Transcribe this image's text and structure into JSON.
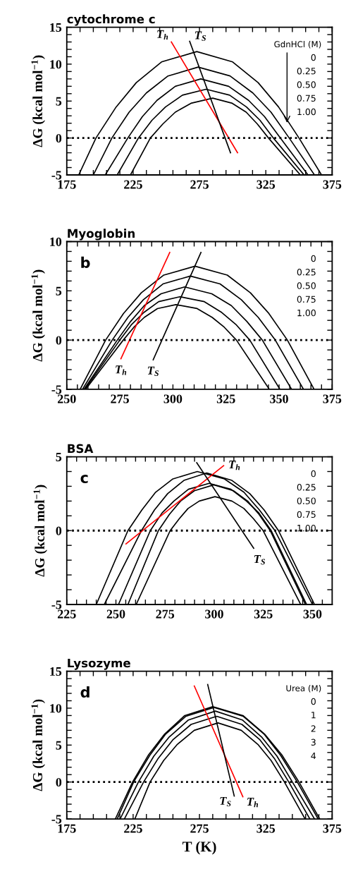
{
  "chart_data": [
    {
      "type": "line",
      "title": "cytochrome c",
      "legend_title": "GdnHCl (M)",
      "ylabel": "ΔG (kcal mol$^{−1}$)",
      "xlim": [
        175,
        375
      ],
      "ylim": [
        -5,
        15
      ],
      "xticks": [
        175,
        {
          "value": 185,
          "label": null
        },
        {
          "value": 195,
          "label": null
        },
        {
          "value": 205,
          "label": null
        },
        {
          "value": 215,
          "label": null
        },
        225,
        {
          "value": 235,
          "label": null
        },
        {
          "value": 245,
          "label": null
        },
        {
          "value": 255,
          "label": null
        },
        {
          "value": 265,
          "label": null
        },
        275,
        {
          "value": 285,
          "label": null
        },
        {
          "value": 295,
          "label": null
        },
        {
          "value": 305,
          "label": null
        },
        {
          "value": 315,
          "label": null
        },
        325,
        {
          "value": 335,
          "label": null
        },
        {
          "value": 345,
          "label": null
        },
        {
          "value": 355,
          "label": null
        },
        {
          "value": 365,
          "label": null
        },
        375
      ],
      "yticks": [
        -5,
        {
          "value": -4,
          "label": null
        },
        {
          "value": -3,
          "label": null
        },
        {
          "value": -2,
          "label": null
        },
        {
          "value": -1,
          "label": null
        },
        0,
        {
          "value": 1,
          "label": null
        },
        {
          "value": 2,
          "label": null
        },
        {
          "value": 3,
          "label": null
        },
        {
          "value": 4,
          "label": null
        },
        5,
        {
          "value": 6,
          "label": null
        },
        {
          "value": 7,
          "label": null
        },
        {
          "value": 8,
          "label": null
        },
        {
          "value": 9,
          "label": null
        },
        10,
        {
          "value": 11,
          "label": null
        },
        {
          "value": 12,
          "label": null
        },
        {
          "value": 13,
          "label": null
        },
        {
          "value": 14,
          "label": null
        },
        15
      ],
      "series": [
        {
          "color": "#000000",
          "x": [
            184,
            197,
            212.2,
            227.4,
            246.4,
            273,
            300,
            319.2,
            334.6,
            350,
            367
          ],
          "values": [
            -5,
            0,
            4.2,
            7.5,
            10.3,
            11.7,
            10.3,
            7.5,
            4.2,
            0,
            -5
          ]
        },
        {
          "color": "#000000",
          "x": [
            195,
            209,
            222,
            235,
            251.3,
            274,
            298,
            315.2,
            328.9,
            342.6,
            361.7
          ],
          "values": [
            -5,
            0,
            3.5,
            6.1,
            8.4,
            9.6,
            8.4,
            6.1,
            3.5,
            0,
            -5
          ]
        },
        {
          "color": "#000000",
          "x": [
            204,
            221,
            232,
            243,
            256.8,
            276,
            297,
            312,
            324,
            336,
            356.8
          ],
          "values": [
            -5,
            0,
            2.9,
            5.1,
            7,
            8,
            7,
            5.1,
            2.9,
            0,
            -5
          ]
        },
        {
          "color": "#000000",
          "x": [
            213,
            229,
            239.2,
            249.4,
            262.2,
            280,
            297.7,
            310.4,
            320.6,
            330.7,
            353.8
          ],
          "values": [
            -5,
            0,
            2.4,
            4.2,
            5.8,
            6.6,
            5.8,
            4.2,
            2.4,
            0,
            -5
          ]
        },
        {
          "color": "#000000",
          "x": [
            223,
            238,
            247.4,
            256.8,
            268.6,
            285,
            299.7,
            310.2,
            318.6,
            327,
            351
          ],
          "values": [
            -5,
            0,
            1.9,
            3.5,
            4.7,
            5.4,
            4.7,
            3.5,
            1.9,
            0,
            -5
          ]
        },
        {
          "color": "#ff0000",
          "x": [
            253.8,
            303.7
          ],
          "values": [
            13,
            -2
          ]
        },
        {
          "color": "#000000",
          "x": [
            267.6,
            298.4
          ],
          "values": [
            13.1,
            -2
          ]
        }
      ],
      "ref_lines": [
        {
          "axis": "y",
          "value": 0,
          "color": "#000000",
          "line_style": "dotted"
        }
      ],
      "annotations": [
        {
          "text": "T$_{h}$",
          "x": 253.8,
          "y": 13
        },
        {
          "text": "T$_{S}$",
          "x": 267.6,
          "y": 13.1
        },
        "0",
        "0.25",
        "0.50",
        "0.75",
        "1.00"
      ]
    },
    {
      "type": "line",
      "title": "Myoglobin",
      "subtitle": "b",
      "ylabel": "ΔG (kcal mol$^{−1}$)",
      "xlim": [
        250,
        375
      ],
      "ylim": [
        -5,
        10
      ],
      "xticks": [
        250,
        {
          "value": 255,
          "label": null
        },
        {
          "value": 260,
          "label": null
        },
        {
          "value": 265,
          "label": null
        },
        {
          "value": 270,
          "label": null
        },
        275,
        {
          "value": 280,
          "label": null
        },
        {
          "value": 285,
          "label": null
        },
        {
          "value": 290,
          "label": null
        },
        {
          "value": 295,
          "label": null
        },
        300,
        {
          "value": 305,
          "label": null
        },
        {
          "value": 310,
          "label": null
        },
        {
          "value": 315,
          "label": null
        },
        {
          "value": 320,
          "label": null
        },
        325,
        {
          "value": 330,
          "label": null
        },
        {
          "value": 335,
          "label": null
        },
        {
          "value": 340,
          "label": null
        },
        {
          "value": 345,
          "label": null
        },
        350,
        {
          "value": 355,
          "label": null
        },
        {
          "value": 360,
          "label": null
        },
        {
          "value": 365,
          "label": null
        },
        {
          "value": 370,
          "label": null
        },
        375
      ],
      "yticks": [
        -5,
        {
          "value": -4,
          "label": null
        },
        {
          "value": -3,
          "label": null
        },
        {
          "value": -2,
          "label": null
        },
        {
          "value": -1,
          "label": null
        },
        0,
        {
          "value": 1,
          "label": null
        },
        {
          "value": 2,
          "label": null
        },
        {
          "value": 3,
          "label": null
        },
        {
          "value": 4,
          "label": null
        },
        5,
        {
          "value": 6,
          "label": null
        },
        {
          "value": 7,
          "label": null
        },
        {
          "value": 8,
          "label": null
        },
        {
          "value": 9,
          "label": null
        },
        10
      ],
      "series": [
        {
          "color": "#000000",
          "x": [
            256.3,
            268.3,
            276.7,
            285.1,
            295.7,
            310.4,
            325.6,
            336.5,
            345.2,
            353.9,
            366.5
          ],
          "values": [
            -5,
            0,
            2.7,
            4.8,
            6.6,
            7.5,
            6.6,
            4.8,
            2.7,
            0,
            -5
          ]
        },
        {
          "color": "#000000",
          "x": [
            257.4,
            271.4,
            278.8,
            286.1,
            295.3,
            308.2,
            322.2,
            332.2,
            340.2,
            348.2,
            361.5
          ],
          "values": [
            -5,
            0,
            2.3,
            4.1,
            5.7,
            6.5,
            5.7,
            4.1,
            2.3,
            0,
            -5
          ]
        },
        {
          "color": "#000000",
          "x": [
            258.1,
            273.8,
            280.1,
            286.5,
            294.4,
            305.5,
            318.3,
            327.5,
            334.8,
            342.1,
            355.9
          ],
          "values": [
            -5,
            0,
            1.9,
            3.5,
            4.7,
            5.4,
            4.7,
            3.5,
            1.9,
            0,
            -5
          ]
        },
        {
          "color": "#000000",
          "x": [
            258.5,
            275,
            280.6,
            286.3,
            293.3,
            303.2,
            314.8,
            323,
            329.6,
            336.2,
            350.4
          ],
          "values": [
            -5,
            0,
            1.6,
            2.8,
            3.9,
            4.4,
            3.9,
            2.8,
            1.6,
            0,
            -5
          ]
        },
        {
          "color": "#000000",
          "x": [
            258.9,
            276.6,
            281.6,
            286.5,
            292.7,
            301.4,
            311.4,
            318.5,
            324.2,
            329.9,
            345.4
          ],
          "values": [
            -5,
            0,
            1.3,
            2.3,
            3.2,
            3.6,
            3.2,
            2.3,
            1.3,
            0,
            -5
          ]
        },
        {
          "color": "#ff0000",
          "x": [
            275.5,
            298.5
          ],
          "values": [
            -1.9,
            8.9
          ]
        },
        {
          "color": "#000000",
          "x": [
            290.7,
            313.2
          ],
          "values": [
            -2,
            8.9
          ]
        }
      ],
      "ref_lines": [
        {
          "axis": "y",
          "value": 0,
          "color": "#000000",
          "line_style": "dotted"
        }
      ],
      "annotations": [
        {
          "text": "T$_{h}$",
          "x": 275.5,
          "y": -1.9
        },
        {
          "text": "T$_{S}$",
          "x": 290.7,
          "y": -2
        },
        "0",
        "0.25",
        "0.50",
        "0.75",
        "1.00"
      ]
    },
    {
      "type": "line",
      "title": "BSA",
      "subtitle": "c",
      "ylabel": "ΔG (kcal mol$^{−1}$)",
      "xlim": [
        225,
        360
      ],
      "ylim": [
        -5,
        5
      ],
      "xticks": [
        225,
        {
          "value": 230,
          "label": null
        },
        {
          "value": 235,
          "label": null
        },
        {
          "value": 240,
          "label": null
        },
        {
          "value": 245,
          "label": null
        },
        250,
        {
          "value": 255,
          "label": null
        },
        {
          "value": 260,
          "label": null
        },
        {
          "value": 265,
          "label": null
        },
        {
          "value": 270,
          "label": null
        },
        275,
        {
          "value": 280,
          "label": null
        },
        {
          "value": 285,
          "label": null
        },
        {
          "value": 290,
          "label": null
        },
        {
          "value": 295,
          "label": null
        },
        300,
        {
          "value": 305,
          "label": null
        },
        {
          "value": 310,
          "label": null
        },
        {
          "value": 315,
          "label": null
        },
        {
          "value": 320,
          "label": null
        },
        325,
        {
          "value": 330,
          "label": null
        },
        {
          "value": 335,
          "label": null
        },
        {
          "value": 340,
          "label": null
        },
        {
          "value": 345,
          "label": null
        },
        350,
        {
          "value": 355,
          "label": null
        }
      ],
      "yticks": [
        -5,
        {
          "value": -4,
          "label": null
        },
        {
          "value": -3,
          "label": null
        },
        {
          "value": -2,
          "label": null
        },
        {
          "value": -1,
          "label": null
        },
        0,
        {
          "value": 1,
          "label": null
        },
        {
          "value": 2,
          "label": null
        },
        {
          "value": 3,
          "label": null
        },
        {
          "value": 4,
          "label": null
        },
        5
      ],
      "series": [
        {
          "color": "#000000",
          "x": [
            240,
            256.1,
            263.2,
            270.2,
            279,
            291.4,
            305.2,
            315.1,
            323,
            330.9,
            350
          ],
          "values": [
            -5,
            0,
            1.4,
            2.6,
            3.5,
            4,
            3.5,
            2.6,
            1.4,
            0,
            -5
          ]
        },
        {
          "color": "#000000",
          "x": [
            244.1,
            263,
            269.6,
            276.3,
            284.6,
            296.2,
            309,
            318.1,
            325.4,
            332.7,
            351
          ],
          "values": [
            -5,
            0,
            1.4,
            2.5,
            3.4,
            3.9,
            3.4,
            2.5,
            1.4,
            0,
            -5
          ]
        },
        {
          "color": "#000000",
          "x": [
            251.3,
            267.5,
            273.5,
            279.5,
            286.9,
            297.4,
            308.5,
            316.4,
            322.7,
            329,
            347
          ],
          "values": [
            -5,
            0,
            1.2,
            2,
            2.8,
            3.2,
            2.8,
            2,
            1.2,
            0,
            -5
          ]
        },
        {
          "color": "#000000",
          "x": [
            256.1,
            271.6,
            277.2,
            282.9,
            289.9,
            299.8,
            309.8,
            317,
            322.8,
            328.5,
            346.4
          ],
          "values": [
            -5,
            0,
            1.1,
            2,
            2.7,
            3.1,
            2.7,
            2,
            1.1,
            0,
            -5
          ]
        },
        {
          "color": "#000000",
          "x": [
            260.3,
            277.6,
            282.2,
            286.7,
            292.4,
            300.4,
            309,
            315.1,
            320,
            324.9,
            344
          ],
          "values": [
            -5,
            0,
            0.8,
            1.5,
            2,
            2.3,
            2,
            1.5,
            0.8,
            0,
            -5
          ]
        },
        {
          "color": "#ff0000",
          "x": [
            255.1,
            304.8
          ],
          "values": [
            -0.9,
            4.4
          ]
        },
        {
          "color": "#000000",
          "x": [
            291.1,
            320.1
          ],
          "values": [
            4.6,
            -1.2
          ]
        }
      ],
      "ref_lines": [
        {
          "axis": "y",
          "value": 0,
          "color": "#000000",
          "line_style": "dotted"
        }
      ],
      "annotations": [
        {
          "text": "T$_{h}$",
          "x": 304.8,
          "y": 4.4
        },
        {
          "text": "T$_{S}$",
          "x": 320.1,
          "y": -1.2
        },
        "0",
        "0.25",
        "0.50",
        "0.75",
        "1.00"
      ]
    },
    {
      "type": "line",
      "title": "Lysozyme",
      "subtitle": "d",
      "legend_title": "Urea (M)",
      "xlabel": "T (K)",
      "ylabel": "ΔG (kcal mol$^{−1}$)",
      "xlim": [
        175,
        375
      ],
      "ylim": [
        -5,
        15
      ],
      "xticks": [
        175,
        {
          "value": 185,
          "label": null
        },
        {
          "value": 195,
          "label": null
        },
        {
          "value": 205,
          "label": null
        },
        {
          "value": 215,
          "label": null
        },
        225,
        {
          "value": 235,
          "label": null
        },
        {
          "value": 245,
          "label": null
        },
        {
          "value": 255,
          "label": null
        },
        {
          "value": 265,
          "label": null
        },
        275,
        {
          "value": 285,
          "label": null
        },
        {
          "value": 295,
          "label": null
        },
        {
          "value": 305,
          "label": null
        },
        {
          "value": 315,
          "label": null
        },
        325,
        {
          "value": 335,
          "label": null
        },
        {
          "value": 345,
          "label": null
        },
        {
          "value": 355,
          "label": null
        },
        {
          "value": 365,
          "label": null
        },
        375
      ],
      "yticks": [
        -5,
        {
          "value": -4,
          "label": null
        },
        {
          "value": -3,
          "label": null
        },
        {
          "value": -2,
          "label": null
        },
        {
          "value": -1,
          "label": null
        },
        0,
        {
          "value": 1,
          "label": null
        },
        {
          "value": 2,
          "label": null
        },
        {
          "value": 3,
          "label": null
        },
        {
          "value": 4,
          "label": null
        },
        5,
        {
          "value": 6,
          "label": null
        },
        {
          "value": 7,
          "label": null
        },
        {
          "value": 8,
          "label": null
        },
        {
          "value": 9,
          "label": null
        },
        10,
        {
          "value": 11,
          "label": null
        },
        {
          "value": 12,
          "label": null
        },
        {
          "value": 13,
          "label": null
        },
        {
          "value": 14,
          "label": null
        },
        15
      ],
      "series": [
        {
          "color": "#000000",
          "x": [
            211.6,
            224.6,
            236.7,
            248.8,
            263.9,
            285,
            307.8,
            324,
            337,
            350,
            365.6
          ],
          "values": [
            -5,
            0,
            3.7,
            6.5,
            9,
            10.2,
            9,
            6.5,
            3.7,
            0,
            -5
          ]
        },
        {
          "color": "#000000",
          "x": [
            213,
            225.4,
            237.5,
            249.6,
            264.8,
            286,
            307.9,
            323.6,
            336.2,
            348.7,
            364.4
          ],
          "values": [
            -5,
            0,
            3.6,
            6.5,
            8.9,
            10.1,
            8.9,
            6.5,
            3.6,
            0,
            -5
          ]
        },
        {
          "color": "#000000",
          "x": [
            215.2,
            229,
            240.6,
            252.2,
            266.7,
            287,
            307.3,
            321.8,
            333.4,
            345,
            361.7
          ],
          "values": [
            -5,
            0,
            3.5,
            6.1,
            8.4,
            9.6,
            8.4,
            6.1,
            3.5,
            0,
            -5
          ]
        },
        {
          "color": "#000000",
          "x": [
            218.4,
            232.9,
            243.9,
            254.9,
            268.7,
            288,
            307,
            320.6,
            331.4,
            342.3,
            358.2
          ],
          "values": [
            -5,
            0,
            3.2,
            5.7,
            7.8,
            8.9,
            7.8,
            5.7,
            3.2,
            0,
            -5
          ]
        },
        {
          "color": "#000000",
          "x": [
            226.3,
            237.8,
            248,
            258.3,
            271.1,
            289,
            306.5,
            319,
            329,
            339,
            354.6
          ],
          "values": [
            -5,
            0,
            2.9,
            5.1,
            7,
            8,
            7,
            5.1,
            2.9,
            0,
            -5
          ]
        },
        {
          "color": "#ff0000",
          "x": [
            271.1,
            307.7
          ],
          "values": [
            13,
            -2
          ]
        },
        {
          "color": "#000000",
          "x": [
            281.2,
            301.2
          ],
          "values": [
            13.2,
            -1.9
          ]
        }
      ],
      "ref_lines": [
        {
          "axis": "y",
          "value": 0,
          "color": "#000000",
          "line_style": "dotted"
        }
      ],
      "annotations": [
        {
          "text": "T$_{S}$",
          "x": 301.2,
          "y": -1.9
        },
        {
          "text": "T$_{h}$",
          "x": 307.7,
          "y": -2
        },
        "0",
        "1",
        "2",
        "3",
        "4"
      ]
    }
  ]
}
